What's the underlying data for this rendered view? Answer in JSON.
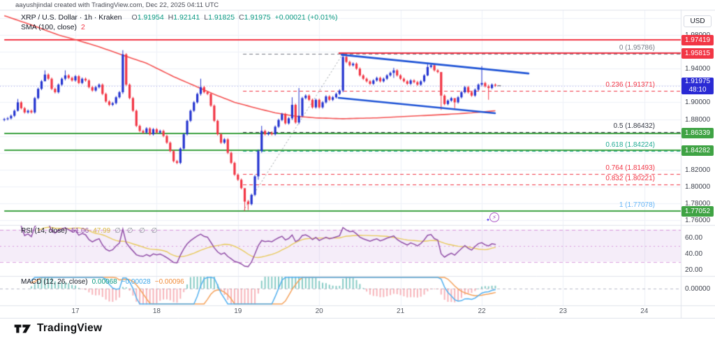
{
  "attribution": "aayushjindal created with TradingView.com, Dec 22, 2025 04:11 UTC",
  "symbol": {
    "title": "XRP / U.S. Dollar · 1h · Kraken",
    "fields": [
      {
        "label": "O",
        "value": "1.91954"
      },
      {
        "label": "H",
        "value": "1.92141"
      },
      {
        "label": "L",
        "value": "1.91825"
      },
      {
        "label": "C",
        "value": "1.91975"
      }
    ],
    "change": "+0.00021 (+0.01%)"
  },
  "sma_legend": {
    "name": "SMA (100, close)",
    "value": "2"
  },
  "rsi_legend": {
    "name": "RSI (14, close)",
    "value": "51.06",
    "ma_value": "47.99",
    "extra": "∅ ∅ ∅ ∅"
  },
  "macd_legend": {
    "name": "MACD (12, 26, close)",
    "hist": "0.00068",
    "macd": "−0.00028",
    "signal": "−0.00096"
  },
  "axis": {
    "currency": "USD",
    "price_ticks": [
      "1.98000",
      "1.94000",
      "1.90000",
      "1.88000",
      "1.82000",
      "1.80000",
      "1.78000",
      "1.76000"
    ],
    "rsi_ticks": [
      {
        "label": "60.00",
        "value": 60
      },
      {
        "label": "40.00",
        "value": 40
      },
      {
        "label": "20.00",
        "value": 20
      }
    ],
    "macd_ticks": [
      {
        "label": "0.00000",
        "value": 0
      }
    ],
    "time_ticks": [
      "17",
      "18",
      "19",
      "20",
      "21",
      "22",
      "23",
      "24"
    ],
    "badges": [
      {
        "text": "1.97419",
        "price": 1.97419,
        "color": "#f23645"
      },
      {
        "text": "1.95815",
        "price": 1.95815,
        "color": "#f23645"
      },
      {
        "text": "1.91975",
        "sub": "48:10",
        "price": 1.91975,
        "color": "#2a2ad4"
      },
      {
        "text": "1.86339",
        "price": 1.86339,
        "color": "#3fa344"
      },
      {
        "text": "1.84282",
        "price": 1.84282,
        "color": "#3fa344"
      },
      {
        "text": "1.77052",
        "price": 1.77052,
        "color": "#3fa344"
      }
    ]
  },
  "chart_data": {
    "type": "candlestick",
    "title": "XRP / U.S. Dollar · 1h · Kraken",
    "interval": "1h",
    "price_range": {
      "min": 1.7575,
      "max": 2.005
    },
    "grid_step": 0.02,
    "first_open": 1.879,
    "closes": [
      1.88,
      1.881,
      1.884,
      1.89,
      1.9,
      1.893,
      1.888,
      1.89,
      1.888,
      1.905,
      1.916,
      1.925,
      1.933,
      1.928,
      1.916,
      1.912,
      1.921,
      1.928,
      1.932,
      1.929,
      1.926,
      1.931,
      1.923,
      1.928,
      1.926,
      1.918,
      1.914,
      1.918,
      1.921,
      1.91,
      1.901,
      1.897,
      1.899,
      1.906,
      1.912,
      1.957,
      1.921,
      1.905,
      1.89,
      1.872,
      1.866,
      1.864,
      1.869,
      1.862,
      1.868,
      1.864,
      1.866,
      1.86,
      1.852,
      1.842,
      1.83,
      1.828,
      1.845,
      1.862,
      1.878,
      1.89,
      1.9,
      1.91,
      1.918,
      1.912,
      1.91,
      1.896,
      1.878,
      1.862,
      1.852,
      1.856,
      1.84,
      1.828,
      1.814,
      1.808,
      1.798,
      1.782,
      1.779,
      1.79,
      1.812,
      1.842,
      1.866,
      1.862,
      1.864,
      1.862,
      1.871,
      1.879,
      1.886,
      1.875,
      1.881,
      1.897,
      1.876,
      1.884,
      1.905,
      1.908,
      1.903,
      1.894,
      1.903,
      1.894,
      1.9,
      1.907,
      1.903,
      1.906,
      1.91,
      1.914,
      1.954,
      1.948,
      1.944,
      1.946,
      1.94,
      1.932,
      1.928,
      1.925,
      1.922,
      1.926,
      1.929,
      1.925,
      1.928,
      1.932,
      1.935,
      1.938,
      1.932,
      1.928,
      1.925,
      1.922,
      1.926,
      1.924,
      1.921,
      1.925,
      1.932,
      1.942,
      1.944,
      1.938,
      1.936,
      1.908,
      1.898,
      1.902,
      1.905,
      1.9,
      1.906,
      1.912,
      1.918,
      1.912,
      1.908,
      1.915,
      1.921,
      1.923,
      1.919,
      1.917,
      1.921,
      1.9198
    ],
    "wick_overrides": {
      "4": [
        1.904,
        1.889
      ],
      "12": [
        1.938,
        1.927
      ],
      "18": [
        1.938,
        1.926
      ],
      "35": [
        1.962,
        1.91
      ],
      "58": [
        1.928,
        1.908
      ],
      "71": [
        1.787,
        1.771
      ],
      "72": [
        1.784,
        1.772
      ],
      "75": [
        1.844,
        1.808
      ],
      "76": [
        1.872,
        1.84
      ],
      "85": [
        1.906,
        1.879
      ],
      "87": [
        1.917,
        1.874
      ],
      "100": [
        1.958,
        1.912
      ],
      "115": [
        1.941,
        1.929
      ],
      "125": [
        1.947,
        1.931
      ],
      "129": [
        1.932,
        1.891
      ],
      "133": [
        1.903,
        1.893
      ],
      "141": [
        1.943,
        1.919
      ],
      "143": [
        1.921,
        1.903
      ]
    },
    "last_price": 1.91975,
    "levels": [
      {
        "value": 1.97419,
        "color": "#f23645",
        "from_i": 0,
        "to_i": 200
      },
      {
        "value": 1.95815,
        "color": "#f23645",
        "from_i": 98.7,
        "to_i": 200
      },
      {
        "value": 1.86339,
        "color": "#3fa344",
        "from_i": 0,
        "to_i": 200
      },
      {
        "value": 1.84282,
        "color": "#3fa344",
        "from_i": 0,
        "to_i": 200
      },
      {
        "value": 1.77052,
        "color": "#3fa344",
        "from_i": 0,
        "to_i": 200
      }
    ],
    "fib": {
      "from": {
        "i": 70.5,
        "price": 1.77078
      },
      "to": {
        "i": 100,
        "price": 1.95786
      },
      "levels": [
        {
          "label": "0 (1.95786)",
          "value": 1.95786,
          "color": "#787b86"
        },
        {
          "label": "0.236 (1.91371)",
          "value": 1.91371,
          "color": "#f23645"
        },
        {
          "label": "0.5 (1.86432)",
          "value": 1.86432,
          "color": "#363a45"
        },
        {
          "label": "0.618 (1.84224)",
          "value": 1.84224,
          "color": "#22ab94"
        },
        {
          "label": "0.764 (1.81493)",
          "value": 1.81493,
          "color": "#f23645"
        },
        {
          "label": "0.832 (1.80221)",
          "value": 1.80221,
          "color": "#f23645"
        },
        {
          "label": "1 (1.77078)",
          "value": 1.77078,
          "color": "#64b5f6"
        }
      ]
    },
    "trendlines": [
      {
        "i1": 99.6,
        "p1": 1.9565,
        "i2": 154.8,
        "p2": 1.9343
      },
      {
        "i1": 98.7,
        "p1": 1.9053,
        "i2": 144.9,
        "p2": 1.8871
      }
    ],
    "sma100_path": [
      [
        0,
        2.003
      ],
      [
        8,
        1.992
      ],
      [
        16,
        1.98
      ],
      [
        21,
        1.9745
      ],
      [
        28,
        1.966
      ],
      [
        35,
        1.956
      ],
      [
        42,
        1.9465
      ],
      [
        50,
        1.9305
      ],
      [
        56,
        1.92
      ],
      [
        62,
        1.9095
      ],
      [
        68,
        1.9
      ],
      [
        74,
        1.8935
      ],
      [
        80,
        1.8875
      ],
      [
        86,
        1.8835
      ],
      [
        92,
        1.8815
      ],
      [
        100,
        1.8805
      ],
      [
        110,
        1.8815
      ],
      [
        120,
        1.8835
      ],
      [
        130,
        1.8855
      ],
      [
        138,
        1.8875
      ],
      [
        145,
        1.89
      ]
    ],
    "rsi": {
      "period": 14,
      "ma_period": 14,
      "band": [
        30,
        70
      ],
      "last": 51.06,
      "ma_last": 47.99
    },
    "macd": {
      "fast": 12,
      "slow": 26,
      "signal_period": 9,
      "last_hist": 0.00068,
      "last_macd": -0.00028,
      "last_signal": -0.00096
    }
  },
  "logo": {
    "text": "TradingView"
  },
  "palette": {
    "up_candle": "#2434d0",
    "down_candle": "#f23645",
    "sma": "#f55353",
    "trendline": "#1f54d6",
    "grid": "#eef1f8",
    "separator": "#e1e4ec",
    "level_red": "#f23645",
    "level_green": "#3fa344",
    "rsi_line": "#9250a8",
    "rsi_ma": "#e9cb5f",
    "rsi_band_fill": "rgba(153,80,200,0.10)",
    "rsi_band_edge": "rgba(205,120,210,0.7)",
    "macd_line": "#53b1f0",
    "macd_signal": "#f5a25b",
    "hist_pos": "rgba(56,170,160,0.6)",
    "hist_neg": "rgba(240,90,105,0.45)",
    "badge_blue": "#2a2ad4",
    "ohlc_green": "#089981",
    "text_dark": "#131722"
  }
}
